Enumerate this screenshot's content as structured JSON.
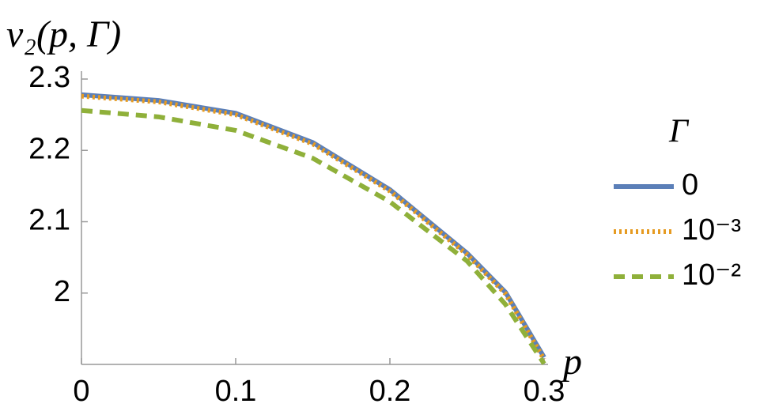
{
  "chart_data": {
    "type": "line",
    "y_label": "v₂(p, Γ)",
    "x_label": "p",
    "legend_title": "Γ",
    "legend": "right",
    "x": [
      0,
      0.05,
      0.1,
      0.15,
      0.2,
      0.25,
      0.275,
      0.3
    ],
    "series": [
      {
        "name": "0",
        "color": "#5b7fb8",
        "dash": "solid",
        "values": [
          2.278,
          2.27,
          2.252,
          2.211,
          2.145,
          2.056,
          2.001,
          1.91
        ]
      },
      {
        "name": "10⁻³",
        "color": "#e69b22",
        "dash": "dotted",
        "values": [
          2.276,
          2.268,
          2.25,
          2.209,
          2.143,
          2.054,
          1.999,
          1.907
        ]
      },
      {
        "name": "10⁻²",
        "color": "#8fb03a",
        "dash": "dashed",
        "values": [
          2.256,
          2.247,
          2.228,
          2.189,
          2.128,
          2.045,
          1.984,
          1.901
        ]
      }
    ],
    "xlim": [
      0,
      0.3
    ],
    "ylim": [
      1.9,
      2.3
    ],
    "xticks": [
      0,
      0.1,
      0.2,
      0.3
    ],
    "yticks": [
      2,
      2.1,
      2.2,
      2.3
    ]
  }
}
